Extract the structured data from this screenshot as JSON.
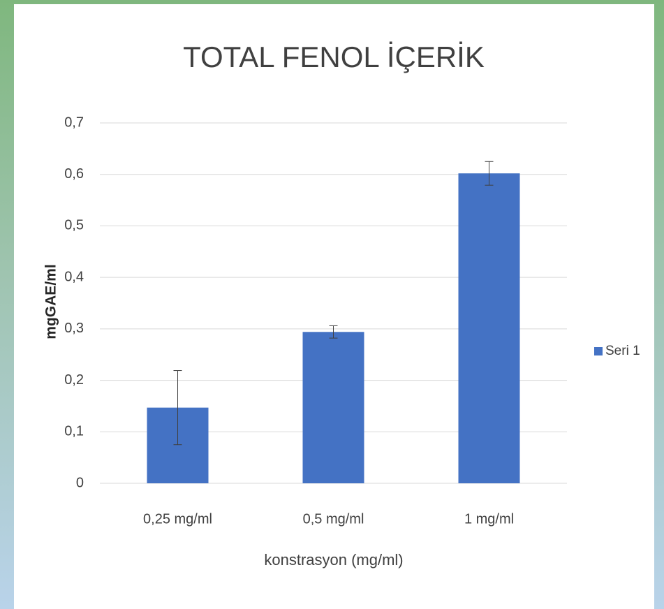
{
  "chart_data": {
    "type": "bar",
    "title": "TOTAL FENOL İÇERİK",
    "x_label": "konstrasyon (mg/ml)",
    "y_label": "mgGAE/ml",
    "categories": [
      "0,25 mg/ml",
      "0,5 mg/ml",
      "1 mg/ml"
    ],
    "series": [
      {
        "name": "Seri 1",
        "color": "#4472c4",
        "values": [
          0.147,
          0.294,
          0.602
        ],
        "errors": [
          0.072,
          0.012,
          0.023
        ]
      }
    ],
    "ylim": [
      0,
      0.7
    ],
    "yticks": [
      0,
      {
        "value": 0.1,
        "label": "0,1"
      },
      {
        "value": 0.2,
        "label": "0,2"
      },
      {
        "value": 0.3,
        "label": "0,3"
      },
      {
        "value": 0.4,
        "label": "0,4"
      },
      {
        "value": 0.5,
        "label": "0,5"
      },
      {
        "value": 0.6,
        "label": "0,6"
      },
      {
        "value": 0.7,
        "label": "0,7"
      }
    ],
    "grid": true,
    "legend": "right"
  }
}
